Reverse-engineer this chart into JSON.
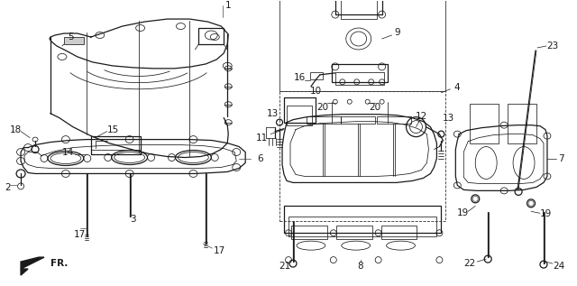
{
  "bg_color": "#ffffff",
  "line_color": "#1a1a1a",
  "figsize": [
    6.4,
    3.17
  ],
  "dpi": 100,
  "label_fs": 7.0,
  "border_color": "#cccccc",
  "gray": "#888888"
}
